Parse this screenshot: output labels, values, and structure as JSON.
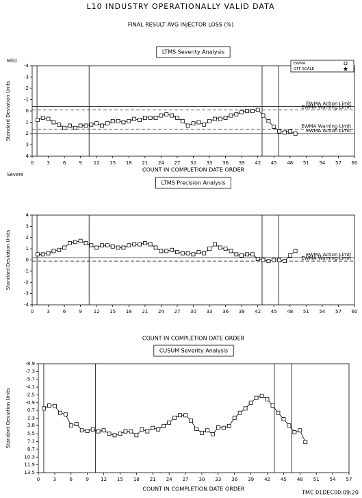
{
  "title": "L10   INDUSTRY OPERATIONALLY VALID DATA",
  "subtitle": "FINAL RESULT AVG INJECTOR LOSS (%)",
  "footer": "TMC  01DEC00:09:20",
  "chart_data": [
    {
      "type": "line",
      "title": "LTMS Severity Analysis",
      "xlabel": "COUNT IN COMPLETION DATE ORDER",
      "ylabel": "Standard Deviation Units",
      "top_note": "Mild",
      "bottom_note": "Severe",
      "xlim": [
        0,
        60
      ],
      "xticks": [
        0,
        3,
        6,
        9,
        12,
        15,
        18,
        21,
        24,
        27,
        30,
        33,
        36,
        39,
        42,
        45,
        48,
        51,
        54,
        57,
        60
      ],
      "ylim": [
        4,
        -4
      ],
      "yticks": [
        -4,
        -3,
        -2,
        -1,
        0,
        1,
        2,
        3,
        4
      ],
      "x": [
        1,
        2,
        3,
        4,
        5,
        6,
        7,
        8,
        9,
        10,
        11,
        12,
        13,
        14,
        15,
        16,
        17,
        18,
        19,
        20,
        21,
        22,
        23,
        24,
        25,
        26,
        27,
        28,
        29,
        30,
        31,
        32,
        33,
        34,
        35,
        36,
        37,
        38,
        39,
        40,
        41,
        42,
        43,
        44,
        45,
        46,
        47,
        48,
        49
      ],
      "series": [
        {
          "color": "#000000",
          "marker": "square",
          "values": [
            0.8,
            0.6,
            0.7,
            1.0,
            1.2,
            1.5,
            1.3,
            1.5,
            1.3,
            1.3,
            1.2,
            1.1,
            1.3,
            1.1,
            0.9,
            0.9,
            1.0,
            0.9,
            0.7,
            0.8,
            0.6,
            0.6,
            0.6,
            0.4,
            0.3,
            0.4,
            0.6,
            0.9,
            1.3,
            1.1,
            1.0,
            1.2,
            0.9,
            0.7,
            0.7,
            0.6,
            0.4,
            0.3,
            0.1,
            0,
            0,
            -0.1,
            0.4,
            0.9,
            1.4,
            1.8,
            1.9,
            1.8,
            2.0
          ]
        }
      ],
      "hlines": [
        {
          "value": -0.4,
          "label": "EWMA Action Limit",
          "style": "solid"
        },
        {
          "value": -0.1,
          "label": "EWMA Warning Limit",
          "style": "dashed"
        },
        {
          "value": 1.6,
          "label": "EWMA Warning Limit",
          "style": "dashed"
        },
        {
          "value": 2.0,
          "label": "EWMA Action Limit",
          "style": "solid"
        }
      ],
      "vlines": [
        0.9,
        10.6,
        42.8,
        45.9
      ],
      "legend": [
        {
          "label": "EWMA",
          "marker": "square"
        },
        {
          "label": "OFF SCALE",
          "marker": "star"
        }
      ]
    },
    {
      "type": "line",
      "title": "LTMS Precision Analysis",
      "xlabel": "COUNT IN COMPLETION DATE ORDER",
      "ylabel": "Standard Deviation Units",
      "xlim": [
        0,
        60
      ],
      "xticks": [
        0,
        3,
        6,
        9,
        12,
        15,
        18,
        21,
        24,
        27,
        30,
        33,
        36,
        39,
        42,
        45,
        48,
        51,
        54,
        57,
        60
      ],
      "ylim": [
        -4,
        4
      ],
      "yticks": [
        -4,
        -3,
        -2,
        -1,
        0,
        1,
        2,
        3,
        4
      ],
      "x": [
        1,
        2,
        3,
        4,
        5,
        6,
        7,
        8,
        9,
        10,
        11,
        12,
        13,
        14,
        15,
        16,
        17,
        18,
        19,
        20,
        21,
        22,
        23,
        24,
        25,
        26,
        27,
        28,
        29,
        30,
        31,
        32,
        33,
        34,
        35,
        36,
        37,
        38,
        39,
        40,
        41,
        42,
        43,
        44,
        45,
        46,
        47,
        48,
        49
      ],
      "series": [
        {
          "color": "#000000",
          "marker": "square",
          "values": [
            0.5,
            0.5,
            0.6,
            0.8,
            0.9,
            1.1,
            1.5,
            1.6,
            1.7,
            1.5,
            1.3,
            1.1,
            1.3,
            1.3,
            1.2,
            1.1,
            1.1,
            1.3,
            1.4,
            1.4,
            1.5,
            1.4,
            1.1,
            0.8,
            0.8,
            0.9,
            0.7,
            0.6,
            0.6,
            0.5,
            0.7,
            0.6,
            1.0,
            1.4,
            1.1,
            1.0,
            0.8,
            0.5,
            0.4,
            0.5,
            0.5,
            0.1,
            0,
            -0.1,
            0,
            0,
            -0.1,
            0.4,
            0.8
          ]
        }
      ],
      "hlines": [
        {
          "value": 0.2,
          "label": "EWMA Action Limit",
          "style": "solid"
        },
        {
          "value": -0.1,
          "label": "EWMA Warning Limit",
          "style": "dashed"
        }
      ],
      "vlines": [
        0.9,
        10.6,
        42.8,
        45.9
      ]
    },
    {
      "type": "line",
      "title": "CUSUM Severity Analysis",
      "xlabel": "COUNT IN COMPLETION DATE ORDER",
      "ylabel": "Standard Deviation Units",
      "xlim": [
        0,
        57
      ],
      "xticks": [
        0,
        3,
        6,
        9,
        12,
        15,
        18,
        21,
        24,
        27,
        30,
        33,
        36,
        39,
        42,
        45,
        48,
        51,
        54,
        57
      ],
      "ylim": [
        13.5,
        -8.9
      ],
      "yticks": [
        -8.9,
        -7.3,
        -5.7,
        -4.1,
        -2.5,
        -0.9,
        0.7,
        2.3,
        3.8,
        5.5,
        7.1,
        8.7,
        10.3,
        11.9,
        13.5
      ],
      "x": [
        1,
        2,
        3,
        4,
        5,
        6,
        7,
        8,
        9,
        10,
        11,
        12,
        13,
        14,
        15,
        16,
        17,
        18,
        19,
        20,
        21,
        22,
        23,
        24,
        25,
        26,
        27,
        28,
        29,
        30,
        31,
        32,
        33,
        34,
        35,
        36,
        37,
        38,
        39,
        40,
        41,
        42,
        43,
        44,
        45,
        46,
        47,
        48,
        49
      ],
      "series": [
        {
          "color": "#000000",
          "marker": "square",
          "values": [
            0.3,
            -0.3,
            -0.2,
            1.2,
            1.5,
            3.8,
            3.5,
            4.8,
            4.9,
            4.6,
            5.0,
            4.8,
            5.5,
            5.8,
            5.5,
            5.0,
            5.0,
            5.8,
            4.6,
            5.0,
            4.3,
            4.6,
            3.9,
            3.2,
            2.2,
            1.7,
            1.7,
            2.8,
            4.5,
            5.3,
            4.8,
            5.6,
            4.2,
            4.3,
            3.9,
            2.2,
            1.2,
            0.3,
            -0.9,
            -1.9,
            -2.3,
            -1.6,
            -0.3,
            1.2,
            2.5,
            3.8,
            5.2,
            4.8,
            7.2
          ]
        }
      ],
      "vlines": [
        1.0,
        10.5,
        43.3,
        46.5
      ]
    }
  ]
}
